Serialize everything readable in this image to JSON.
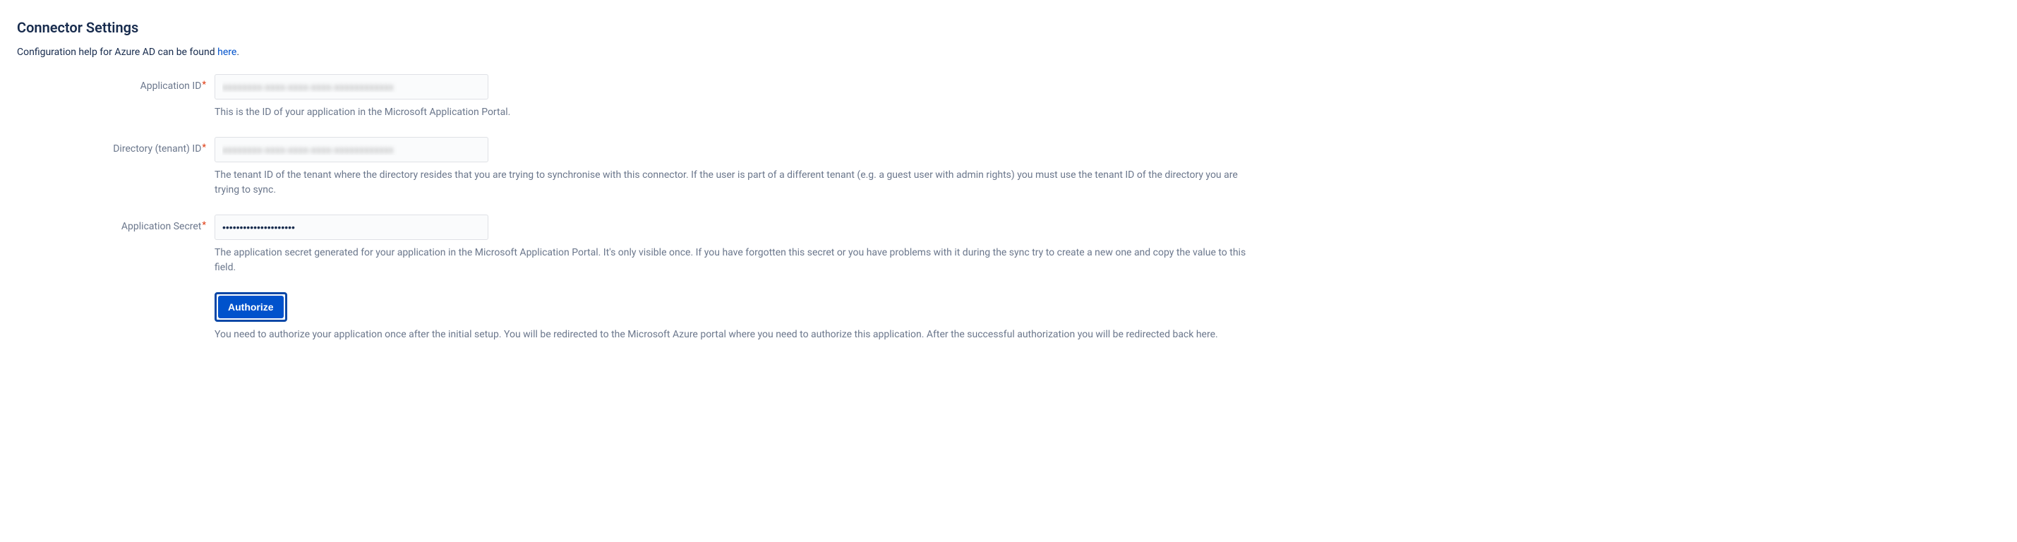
{
  "section": {
    "title": "Connector Settings",
    "help_prefix": "Configuration help for Azure AD can be found ",
    "help_link_text": "here",
    "help_suffix": "."
  },
  "fields": {
    "application_id": {
      "label": "Application ID",
      "required_marker": "*",
      "value": "xxxxxxxx-xxxx-xxxx-xxxx-xxxxxxxxxxxx",
      "description": "This is the ID of your application in the Microsoft Application Portal."
    },
    "directory_tenant_id": {
      "label": "Directory (tenant) ID",
      "required_marker": "*",
      "value": "xxxxxxxx-xxxx-xxxx-xxxx-xxxxxxxxxxxx",
      "description": "The tenant ID of the tenant where the directory resides that you are trying to synchronise with this connector. If the user is part of a different tenant (e.g. a guest user with admin rights) you must use the tenant ID of the directory you are trying to sync."
    },
    "application_secret": {
      "label": "Application Secret",
      "required_marker": "*",
      "value": "•••••••••••••••••••••",
      "description": "The application secret generated for your application in the Microsoft Application Portal. It's only visible once. If you have forgotten this secret or you have problems with it during the sync try to create a new one and copy the value to this field."
    }
  },
  "authorize": {
    "button_label": "Authorize",
    "description": "You need to authorize your application once after the initial setup. You will be redirected to the Microsoft Azure portal where you need to authorize this application. After the successful authorization you will be redirected back here."
  },
  "colors": {
    "primary": "#0052cc",
    "primary_dark": "#0747a6",
    "text": "#172b4d",
    "text_muted": "#6b778c",
    "required": "#de350b",
    "border": "#dfe1e6",
    "input_bg": "#fafbfc"
  }
}
